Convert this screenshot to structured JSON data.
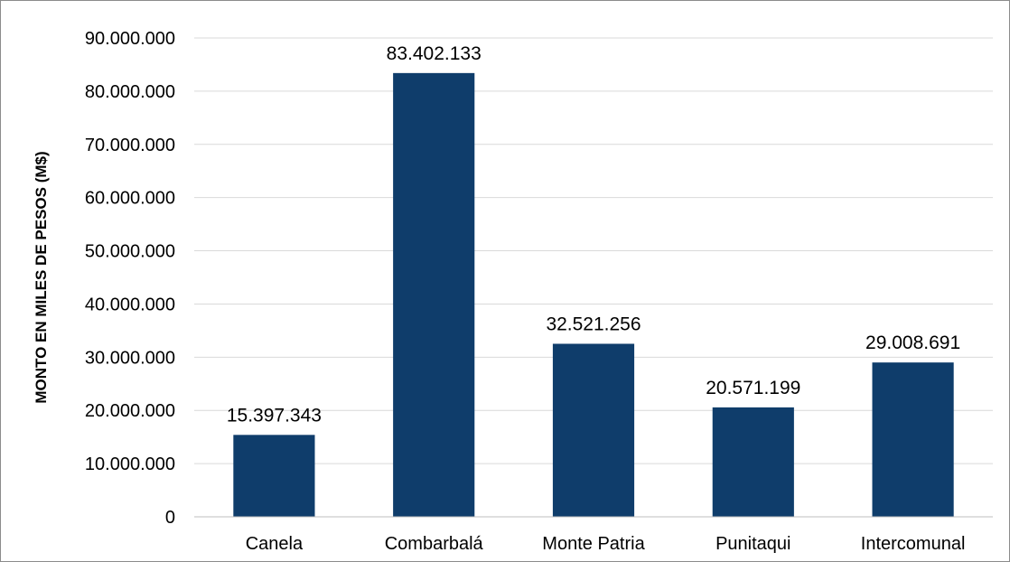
{
  "chart_data": {
    "type": "bar",
    "title": "",
    "xlabel": "",
    "ylabel": "MONTO EN MILES DE PESOS (M$)",
    "categories": [
      "Canela",
      "Combarbalá",
      "Monte Patria",
      "Punitaqui",
      "Intercomunal"
    ],
    "values": [
      15397343,
      83402133,
      32521256,
      20571199,
      29008691
    ],
    "value_labels": [
      "15.397.343",
      "83.402.133",
      "32.521.256",
      "20.571.199",
      "29.008.691"
    ],
    "ylim": [
      0,
      90000000
    ],
    "yticks": [
      0,
      10000000,
      20000000,
      30000000,
      40000000,
      50000000,
      60000000,
      70000000,
      80000000,
      90000000
    ],
    "ytick_labels": [
      "0",
      "10.000.000",
      "20.000.000",
      "30.000.000",
      "40.000.000",
      "50.000.000",
      "60.000.000",
      "70.000.000",
      "80.000.000",
      "90.000.000"
    ],
    "grid": true,
    "legend": "none",
    "bar_color": "#0f3d6b"
  }
}
